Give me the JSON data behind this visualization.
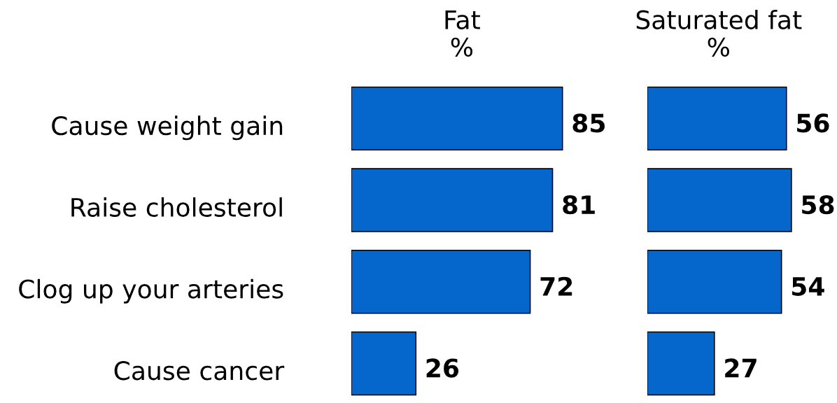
{
  "chart_data": [
    {
      "type": "bar",
      "orientation": "horizontal",
      "title": "Fat\n%",
      "categories": [
        "Cause weight gain",
        "Raise cholesterol",
        "Clog up your arteries",
        "Cause cancer"
      ],
      "values": [
        85,
        81,
        72,
        26
      ],
      "color": "#0566cc",
      "data_labels": true,
      "tick_labels": "y"
    },
    {
      "type": "bar",
      "orientation": "horizontal",
      "title": "Saturated fat\n%",
      "values": [
        56,
        58,
        54,
        27
      ],
      "color": "#0566cc",
      "data_labels": true,
      "tick_labels": false
    }
  ]
}
